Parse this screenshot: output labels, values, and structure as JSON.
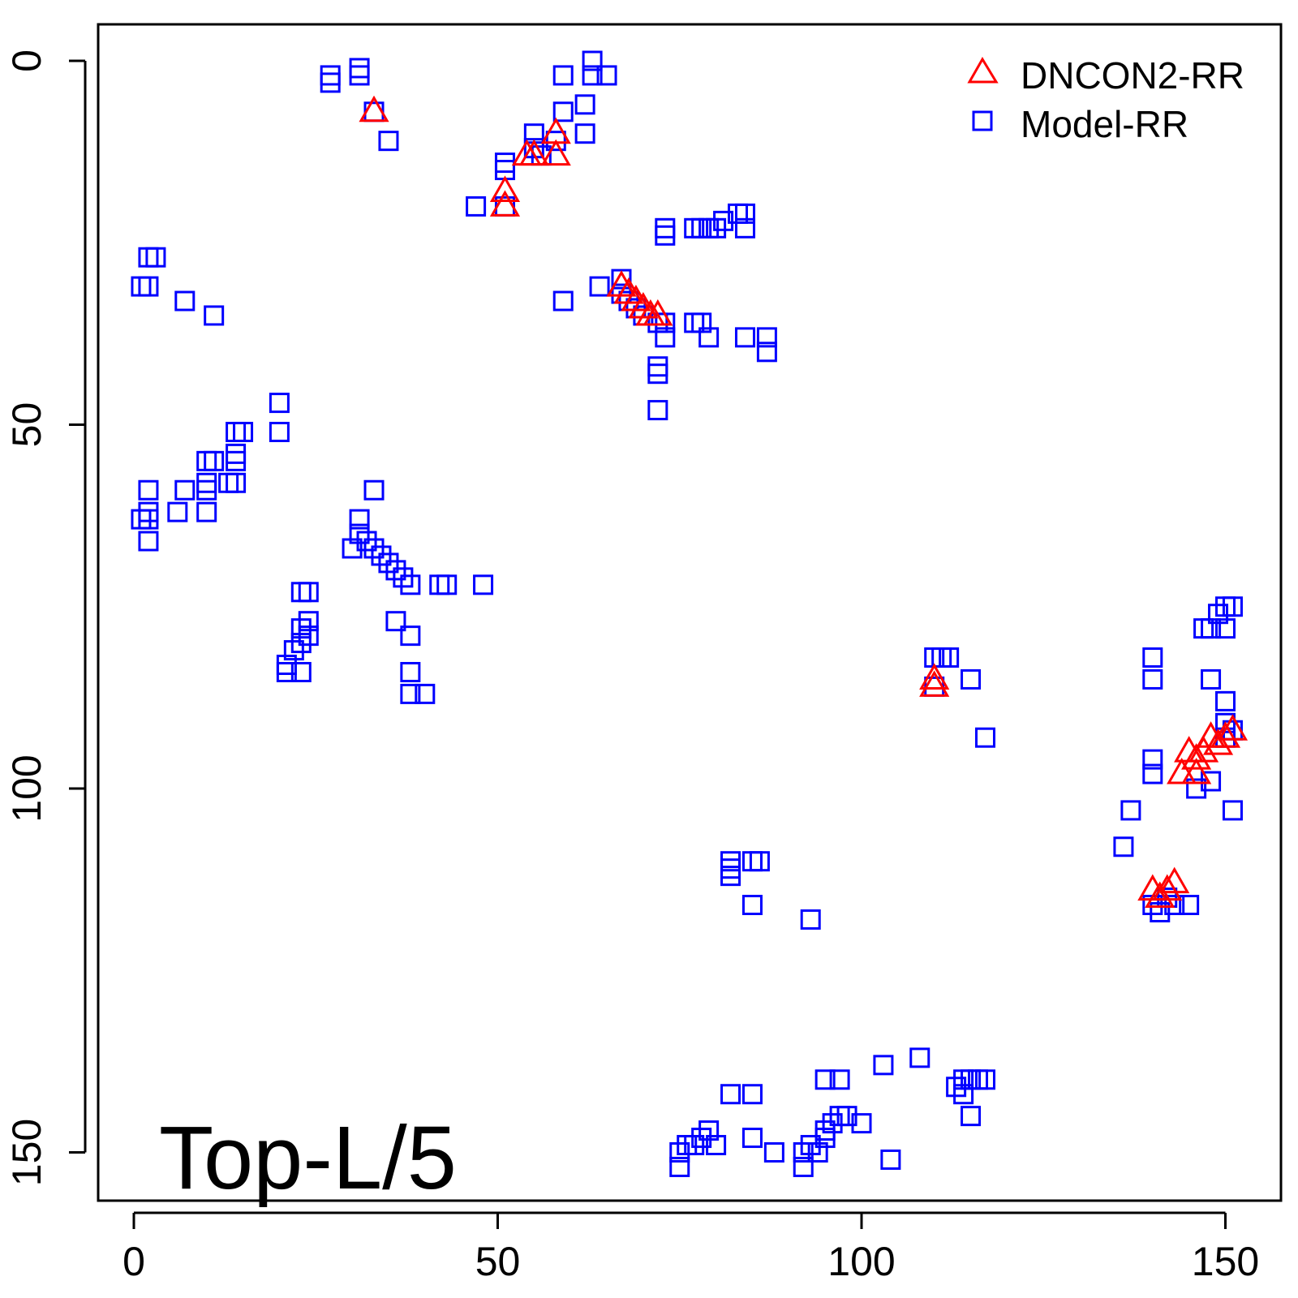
{
  "chart_data": {
    "type": "scatter",
    "title": "",
    "xlabel": "",
    "ylabel": "",
    "annotation": "Top-L/5",
    "xlim": [
      -5,
      157
    ],
    "ylim": [
      -5,
      158
    ],
    "y_reversed": true,
    "x_ticks": [
      "0",
      "50",
      "100",
      "150"
    ],
    "y_ticks": [
      "0",
      "50",
      "100",
      "150"
    ],
    "legend_position": "top-right",
    "series": [
      {
        "name": "DNCON2-RR",
        "marker": "triangle",
        "color": "#ff0000",
        "points": [
          [
            33,
            7
          ],
          [
            51,
            18
          ],
          [
            51,
            20
          ],
          [
            54,
            13
          ],
          [
            55,
            13
          ],
          [
            58,
            10
          ],
          [
            58,
            13
          ],
          [
            67,
            31
          ],
          [
            68,
            32
          ],
          [
            69,
            33
          ],
          [
            70,
            34
          ],
          [
            71,
            35
          ],
          [
            72,
            35
          ],
          [
            110,
            85
          ],
          [
            110,
            86
          ],
          [
            144,
            98
          ],
          [
            145,
            95
          ],
          [
            146,
            96
          ],
          [
            146,
            98
          ],
          [
            147,
            95
          ],
          [
            148,
            93
          ],
          [
            149,
            94
          ],
          [
            150,
            93
          ],
          [
            151,
            92
          ],
          [
            140,
            114
          ],
          [
            141,
            115
          ],
          [
            142,
            114
          ],
          [
            143,
            113
          ]
        ]
      },
      {
        "name": "Model-RR",
        "marker": "square",
        "color": "#0000ff",
        "points": [
          [
            27,
            2
          ],
          [
            27,
            3
          ],
          [
            31,
            1
          ],
          [
            31,
            2
          ],
          [
            33,
            7
          ],
          [
            35,
            11
          ],
          [
            47,
            20
          ],
          [
            51,
            14
          ],
          [
            51,
            15
          ],
          [
            51,
            20
          ],
          [
            55,
            10
          ],
          [
            55,
            12
          ],
          [
            56,
            13
          ],
          [
            58,
            11
          ],
          [
            59,
            7
          ],
          [
            59,
            2
          ],
          [
            62,
            6
          ],
          [
            62,
            10
          ],
          [
            63,
            0
          ],
          [
            63,
            2
          ],
          [
            65,
            2
          ],
          [
            59,
            33
          ],
          [
            2,
            27
          ],
          [
            3,
            27
          ],
          [
            1,
            31
          ],
          [
            2,
            31
          ],
          [
            7,
            33
          ],
          [
            11,
            35
          ],
          [
            20,
            47
          ],
          [
            20,
            51
          ],
          [
            15,
            51
          ],
          [
            14,
            51
          ],
          [
            14,
            54
          ],
          [
            14,
            55
          ],
          [
            14,
            58
          ],
          [
            13,
            58
          ],
          [
            10,
            55
          ],
          [
            11,
            55
          ],
          [
            10,
            58
          ],
          [
            10,
            59
          ],
          [
            7,
            59
          ],
          [
            10,
            62
          ],
          [
            6,
            62
          ],
          [
            2,
            59
          ],
          [
            2,
            62
          ],
          [
            1,
            63
          ],
          [
            2,
            63
          ],
          [
            2,
            66
          ],
          [
            73,
            23
          ],
          [
            73,
            24
          ],
          [
            77,
            23
          ],
          [
            78,
            23
          ],
          [
            79,
            23
          ],
          [
            80,
            23
          ],
          [
            81,
            22
          ],
          [
            83,
            21
          ],
          [
            84,
            21
          ],
          [
            84,
            23
          ],
          [
            64,
            31
          ],
          [
            67,
            30
          ],
          [
            67,
            32
          ],
          [
            68,
            33
          ],
          [
            69,
            34
          ],
          [
            70,
            35
          ],
          [
            72,
            36
          ],
          [
            73,
            36
          ],
          [
            73,
            38
          ],
          [
            77,
            36
          ],
          [
            78,
            36
          ],
          [
            79,
            38
          ],
          [
            84,
            38
          ],
          [
            87,
            38
          ],
          [
            87,
            40
          ],
          [
            72,
            42
          ],
          [
            72,
            43
          ],
          [
            72,
            48
          ],
          [
            30,
            67
          ],
          [
            31,
            63
          ],
          [
            31,
            65
          ],
          [
            32,
            66
          ],
          [
            33,
            67
          ],
          [
            34,
            68
          ],
          [
            35,
            69
          ],
          [
            36,
            70
          ],
          [
            37,
            71
          ],
          [
            38,
            72
          ],
          [
            33,
            59
          ],
          [
            42,
            72
          ],
          [
            43,
            72
          ],
          [
            48,
            72
          ],
          [
            24,
            73
          ],
          [
            23,
            73
          ],
          [
            24,
            77
          ],
          [
            23,
            78
          ],
          [
            24,
            79
          ],
          [
            23,
            80
          ],
          [
            22,
            81
          ],
          [
            21,
            83
          ],
          [
            21,
            84
          ],
          [
            23,
            84
          ],
          [
            36,
            77
          ],
          [
            38,
            79
          ],
          [
            38,
            84
          ],
          [
            38,
            87
          ],
          [
            40,
            87
          ],
          [
            110,
            82
          ],
          [
            111,
            82
          ],
          [
            112,
            82
          ],
          [
            110,
            86
          ],
          [
            115,
            85
          ],
          [
            117,
            93
          ],
          [
            140,
            82
          ],
          [
            140,
            85
          ],
          [
            148,
            85
          ],
          [
            150,
            88
          ],
          [
            147,
            78
          ],
          [
            148,
            78
          ],
          [
            149,
            76
          ],
          [
            150,
            75
          ],
          [
            150,
            78
          ],
          [
            151,
            75
          ],
          [
            140,
            96
          ],
          [
            140,
            98
          ],
          [
            146,
            100
          ],
          [
            148,
            99
          ],
          [
            151,
            103
          ],
          [
            137,
            103
          ],
          [
            136,
            108
          ],
          [
            150,
            91
          ],
          [
            151,
            92
          ],
          [
            150,
            93
          ],
          [
            140,
            116
          ],
          [
            141,
            117
          ],
          [
            142,
            115
          ],
          [
            143,
            116
          ],
          [
            145,
            116
          ],
          [
            82,
            110
          ],
          [
            82,
            111
          ],
          [
            82,
            112
          ],
          [
            85,
            110
          ],
          [
            86,
            110
          ],
          [
            85,
            116
          ],
          [
            93,
            118
          ],
          [
            75,
            150
          ],
          [
            76,
            149
          ],
          [
            77,
            149
          ],
          [
            78,
            148
          ],
          [
            79,
            147
          ],
          [
            80,
            149
          ],
          [
            75,
            152
          ],
          [
            82,
            142
          ],
          [
            85,
            142
          ],
          [
            85,
            148
          ],
          [
            88,
            150
          ],
          [
            92,
            150
          ],
          [
            93,
            149
          ],
          [
            94,
            150
          ],
          [
            95,
            148
          ],
          [
            95,
            147
          ],
          [
            96,
            146
          ],
          [
            97,
            145
          ],
          [
            98,
            145
          ],
          [
            100,
            146
          ],
          [
            95,
            140
          ],
          [
            97,
            140
          ],
          [
            103,
            138
          ],
          [
            104,
            151
          ],
          [
            108,
            137
          ],
          [
            113,
            141
          ],
          [
            114,
            140
          ],
          [
            115,
            140
          ],
          [
            116,
            140
          ],
          [
            114,
            142
          ],
          [
            115,
            145
          ],
          [
            117,
            140
          ],
          [
            92,
            152
          ]
        ]
      }
    ]
  }
}
